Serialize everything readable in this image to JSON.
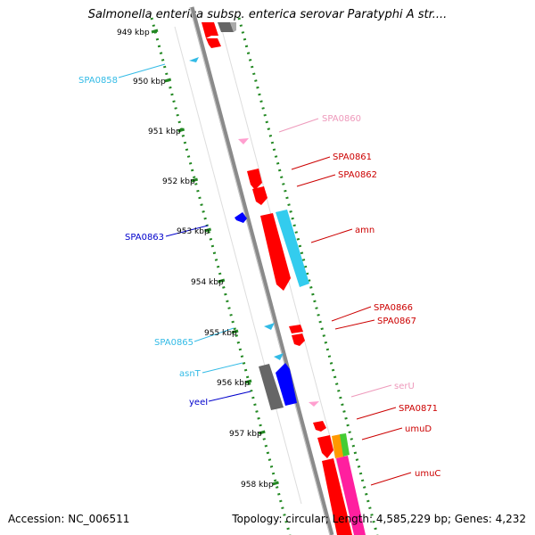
{
  "title": "Salmonella enterica subsp. enterica serovar Paratyphi A str....",
  "footer": {
    "accession": "Accession: NC_006511",
    "summary": "Topology: circular; Length: 4,585,229 bp; Genes: 4,232"
  },
  "kbp_ticks": [
    "949 kbp",
    "950 kbp",
    "951 kbp",
    "952 kbp",
    "953 kbp",
    "954 kbp",
    "955 kbp",
    "956 kbp",
    "957 kbp",
    "958 kbp"
  ],
  "gene_labels": [
    {
      "id": "spa0858",
      "text": "SPA0858",
      "color": "#33bbe6"
    },
    {
      "id": "spa0860",
      "text": "SPA0860",
      "color": "#ee99bb"
    },
    {
      "id": "spa0861",
      "text": "SPA0861",
      "color": "#cc0000"
    },
    {
      "id": "spa0862",
      "text": "SPA0862",
      "color": "#cc0000"
    },
    {
      "id": "spa0863",
      "text": "SPA0863",
      "color": "#0000cc"
    },
    {
      "id": "amn",
      "text": "amn",
      "color": "#cc0000"
    },
    {
      "id": "spa0866",
      "text": "SPA0866",
      "color": "#cc0000"
    },
    {
      "id": "spa0867",
      "text": "SPA0867",
      "color": "#cc0000"
    },
    {
      "id": "spa0865",
      "text": "SPA0865",
      "color": "#33bbe6"
    },
    {
      "id": "asnt",
      "text": "asnT",
      "color": "#33bbe6"
    },
    {
      "id": "seru",
      "text": "serU",
      "color": "#ee99bb"
    },
    {
      "id": "yeel",
      "text": "yeeI",
      "color": "#0000cc"
    },
    {
      "id": "spa0871",
      "text": "SPA0871",
      "color": "#cc0000"
    },
    {
      "id": "umud",
      "text": "umuD",
      "color": "#cc0000"
    },
    {
      "id": "umuc",
      "text": "umuC",
      "color": "#cc0000"
    }
  ],
  "colors": {
    "cds": "#ff0000",
    "trna": "#33ccee",
    "rrna": "#ff9fcf",
    "blue_feature": "#0000ff",
    "gray_feature": "#666666",
    "gc_track": "#228822",
    "backbone": "#8a8a8a"
  }
}
